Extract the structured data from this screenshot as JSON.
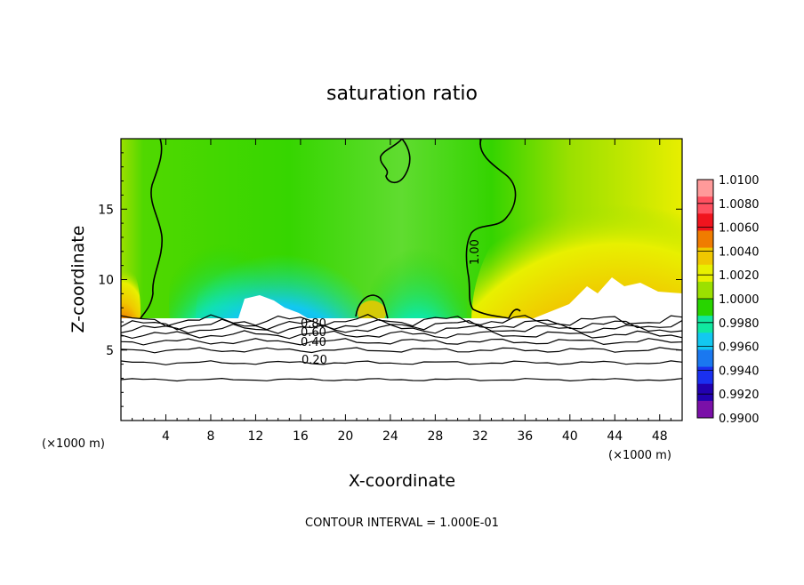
{
  "chart_data": {
    "type": "heatmap",
    "title": "saturation ratio",
    "xlabel": "X-coordinate",
    "ylabel": "Z-coordinate",
    "x_unit_label": "(×1000 m)",
    "x_unit_label_right": "(×1000 m)",
    "xlim": [
      0,
      50
    ],
    "ylim": [
      0,
      20
    ],
    "x_ticks": [
      4,
      8,
      12,
      16,
      20,
      24,
      28,
      32,
      36,
      40,
      44,
      48
    ],
    "y_ticks": [
      5,
      10,
      15
    ],
    "colorbar": {
      "labels": [
        "1.0100",
        "1.0080",
        "1.0060",
        "1.0040",
        "1.0020",
        "1.0000",
        "0.9980",
        "0.9960",
        "0.9940",
        "0.9920",
        "0.9900"
      ],
      "colors": [
        "#ff9a9a",
        "#ff5060",
        "#f0141e",
        "#f07c00",
        "#f0c800",
        "#e8f000",
        "#9be000",
        "#28d400",
        "#10e8a0",
        "#12c8f0",
        "#1a78f0",
        "#1a30f0",
        "#2200b0",
        "#7a10a8"
      ]
    },
    "contour_labels": [
      "0.80",
      "0.60",
      "0.40",
      "0.20",
      "1.00"
    ],
    "contour_levels": [
      0.2,
      0.3,
      0.4,
      0.5,
      0.6,
      0.7,
      0.8,
      0.9,
      1.0
    ],
    "footer": "CONTOUR INTERVAL = 1.000E-01"
  }
}
